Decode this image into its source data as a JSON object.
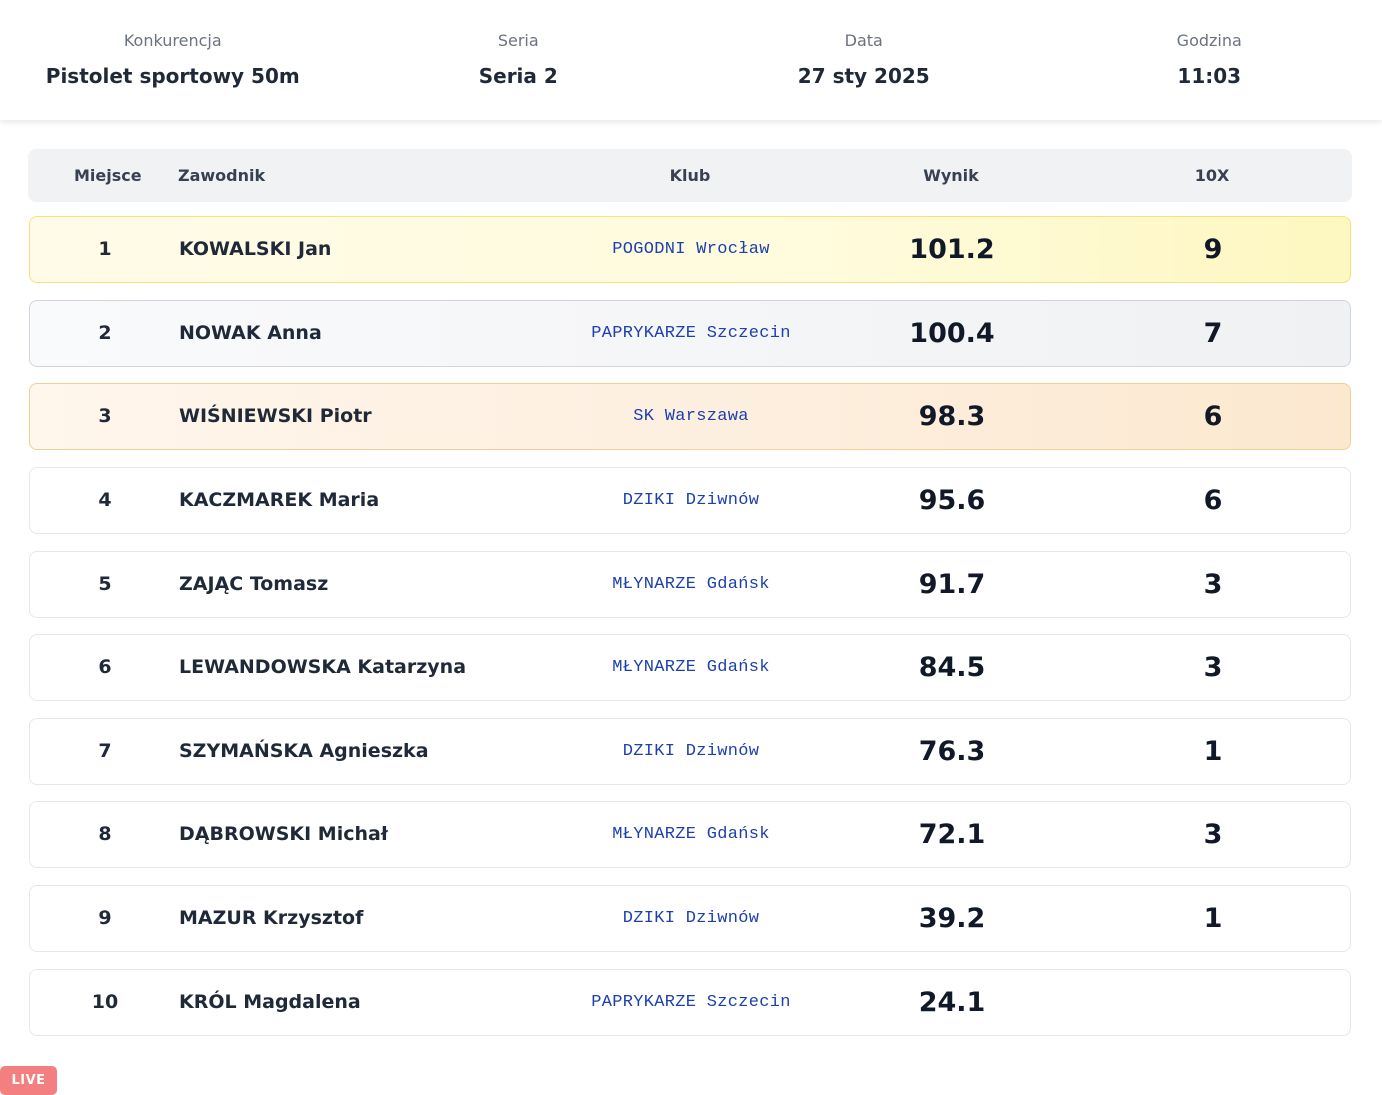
{
  "header": {
    "competition_label": "Konkurencja",
    "competition_value": "Pistolet sportowy 50m",
    "series_label": "Seria",
    "series_value": "Seria 2",
    "date_label": "Data",
    "date_value": "27 sty 2025",
    "time_label": "Godzina",
    "time_value": "11:03"
  },
  "table": {
    "columns": {
      "place": "Miejsce",
      "athlete": "Zawodnik",
      "club": "Klub",
      "score": "Wynik",
      "tenx": "10X"
    },
    "rows": [
      {
        "place": "1",
        "name": "KOWALSKI Jan",
        "club": "POGODNI Wrocław",
        "score": "101.2",
        "tenx": "9",
        "medal": "gold"
      },
      {
        "place": "2",
        "name": "NOWAK Anna",
        "club": "PAPRYKARZE Szczecin",
        "score": "100.4",
        "tenx": "7",
        "medal": "silver"
      },
      {
        "place": "3",
        "name": "WIŚNIEWSKI Piotr",
        "club": "SK Warszawa",
        "score": "98.3",
        "tenx": "6",
        "medal": "bronze"
      },
      {
        "place": "4",
        "name": "KACZMAREK Maria",
        "club": "DZIKI Dziwnów",
        "score": "95.6",
        "tenx": "6",
        "medal": ""
      },
      {
        "place": "5",
        "name": "ZAJĄC Tomasz",
        "club": "MŁYNARZE Gdańsk",
        "score": "91.7",
        "tenx": "3",
        "medal": ""
      },
      {
        "place": "6",
        "name": "LEWANDOWSKA Katarzyna",
        "club": "MŁYNARZE Gdańsk",
        "score": "84.5",
        "tenx": "3",
        "medal": ""
      },
      {
        "place": "7",
        "name": "SZYMAŃSKA Agnieszka",
        "club": "DZIKI Dziwnów",
        "score": "76.3",
        "tenx": "1",
        "medal": ""
      },
      {
        "place": "8",
        "name": "DĄBROWSKI Michał",
        "club": "MŁYNARZE Gdańsk",
        "score": "72.1",
        "tenx": "3",
        "medal": ""
      },
      {
        "place": "9",
        "name": "MAZUR Krzysztof",
        "club": "DZIKI Dziwnów",
        "score": "39.2",
        "tenx": "1",
        "medal": ""
      },
      {
        "place": "10",
        "name": "KRÓL Magdalena",
        "club": "PAPRYKARZE Szczecin",
        "score": "24.1",
        "tenx": "",
        "medal": ""
      }
    ]
  },
  "badge": {
    "live_label": "LIVE"
  },
  "colors": {
    "club_text": "#1e40af",
    "live_badge": "#f47f80",
    "gold_border": "#f5e27a",
    "bronze_border": "#f3cf92"
  }
}
